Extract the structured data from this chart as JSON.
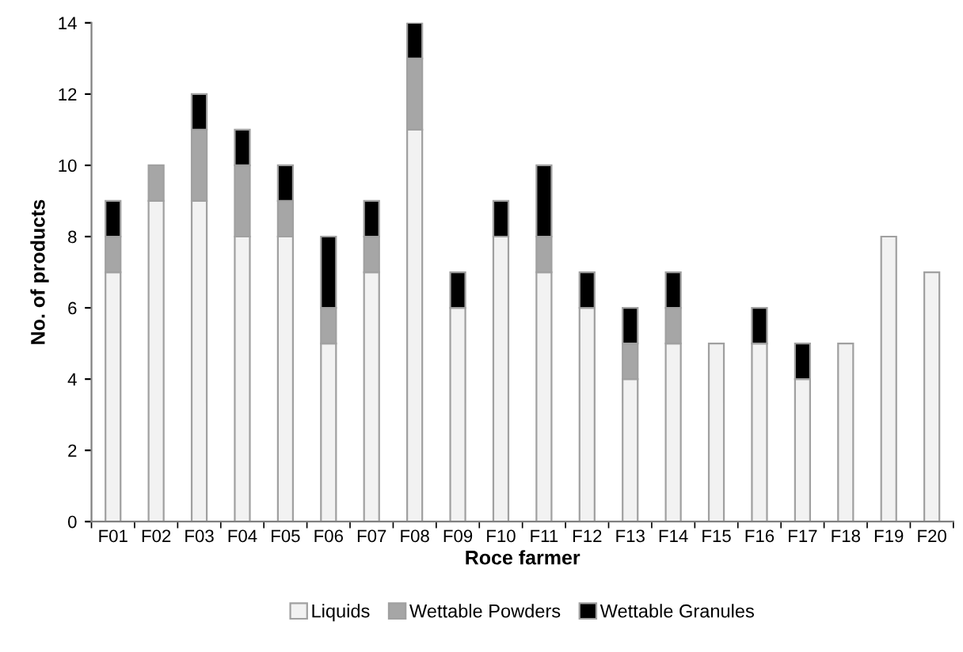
{
  "chart_data": {
    "type": "bar",
    "stacked": true,
    "xlabel": "Roce farmer",
    "ylabel": "No. of products",
    "categories": [
      "F01",
      "F02",
      "F03",
      "F04",
      "F05",
      "F06",
      "F07",
      "F08",
      "F09",
      "F10",
      "F11",
      "F12",
      "F13",
      "F14",
      "F15",
      "F16",
      "F17",
      "F18",
      "F19",
      "F20"
    ],
    "series": [
      {
        "name": "Liquids",
        "color": "#f2f2f2",
        "values": [
          7,
          9,
          9,
          8,
          8,
          5,
          7,
          11,
          6,
          8,
          7,
          6,
          4,
          5,
          5,
          5,
          4,
          5,
          8,
          7
        ]
      },
      {
        "name": "Wettable Powders",
        "color": "#a6a6a6",
        "values": [
          1,
          1,
          2,
          2,
          1,
          1,
          1,
          2,
          0,
          0,
          1,
          0,
          1,
          1,
          0,
          0,
          0,
          0,
          0,
          0
        ]
      },
      {
        "name": "Wettable Granules",
        "color": "#000000",
        "values": [
          1,
          0,
          1,
          1,
          1,
          2,
          1,
          1,
          1,
          1,
          2,
          1,
          1,
          1,
          0,
          1,
          1,
          0,
          0,
          0
        ]
      }
    ],
    "ylim": [
      0,
      14
    ],
    "yticks": [
      0,
      2,
      4,
      6,
      8,
      10,
      12,
      14
    ],
    "grid": false,
    "legend": "bottom"
  }
}
